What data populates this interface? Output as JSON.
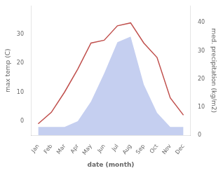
{
  "chart_data": {
    "type": "line",
    "categories": [
      "Jan",
      "Feb",
      "Mar",
      "Apr",
      "May",
      "Jun",
      "Jul",
      "Aug",
      "Sep",
      "Oct",
      "Nov",
      "Dec"
    ],
    "series": [
      {
        "type": "area",
        "color": "#c5cff0",
        "axis": "y2",
        "values": [
          3,
          3,
          3,
          5,
          12,
          22,
          33,
          35,
          18,
          8,
          3,
          3
        ]
      },
      {
        "type": "line",
        "color": "#c0504d",
        "values": [
          -1,
          3,
          10,
          18,
          27,
          28,
          33,
          34,
          27,
          22,
          8,
          2
        ]
      }
    ],
    "xlabel": "date (month)",
    "ylabel": "max temp (C)",
    "y2label": "med. precipitation (kg/m2)",
    "ylim": [
      -5,
      40
    ],
    "yticks": [
      0,
      10,
      20,
      30
    ],
    "y2lim": [
      0,
      46
    ],
    "y2ticks": [
      0,
      10,
      20,
      30,
      40
    ],
    "grid": false
  }
}
